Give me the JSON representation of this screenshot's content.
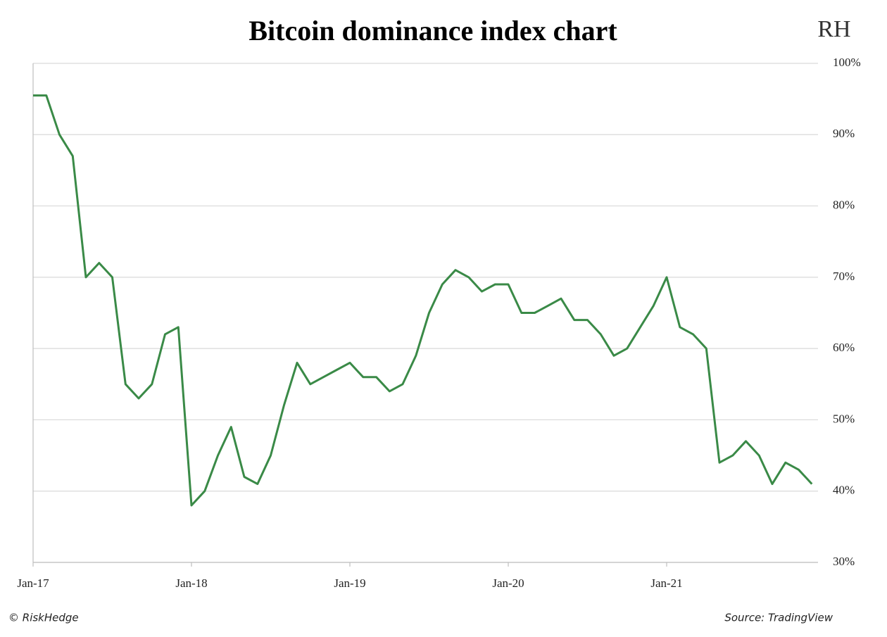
{
  "chart_data": {
    "type": "line",
    "title": "Bitcoin dominance index chart",
    "logo": "RH",
    "credit": "© RiskHedge",
    "source": "Source: TradingView",
    "x": [
      "Jan-17",
      "Feb-17",
      "Mar-17",
      "Apr-17",
      "May-17",
      "Jun-17",
      "Jul-17",
      "Aug-17",
      "Sep-17",
      "Oct-17",
      "Nov-17",
      "Dec-17",
      "Jan-18",
      "Feb-18",
      "Mar-18",
      "Apr-18",
      "May-18",
      "Jun-18",
      "Jul-18",
      "Aug-18",
      "Sep-18",
      "Oct-18",
      "Nov-18",
      "Dec-18",
      "Jan-19",
      "Feb-19",
      "Mar-19",
      "Apr-19",
      "May-19",
      "Jun-19",
      "Jul-19",
      "Aug-19",
      "Sep-19",
      "Oct-19",
      "Nov-19",
      "Dec-19",
      "Jan-20",
      "Feb-20",
      "Mar-20",
      "Apr-20",
      "May-20",
      "Jun-20",
      "Jul-20",
      "Aug-20",
      "Sep-20",
      "Oct-20",
      "Nov-20",
      "Dec-20",
      "Jan-21",
      "Feb-21",
      "Mar-21",
      "Apr-21",
      "May-21",
      "Jun-21",
      "Jul-21",
      "Aug-21",
      "Sep-21",
      "Oct-21",
      "Nov-21",
      "Dec-21"
    ],
    "values": [
      95.5,
      95.5,
      90,
      87,
      70,
      72,
      70,
      55,
      53,
      55,
      62,
      63,
      38,
      40,
      45,
      49,
      42,
      41,
      45,
      52,
      58,
      55,
      56,
      57,
      58,
      56,
      56,
      54,
      55,
      59,
      65,
      69,
      71,
      70,
      68,
      69,
      69,
      65,
      65,
      66,
      67,
      64,
      64,
      62,
      59,
      60,
      63,
      66,
      70,
      63,
      62,
      60,
      44,
      45,
      47,
      45,
      41,
      44,
      43,
      41
    ],
    "color": "#3a8a47",
    "xticks": [
      "Jan-17",
      "Jan-18",
      "Jan-19",
      "Jan-20",
      "Jan-21"
    ],
    "ylim": [
      30,
      100
    ],
    "yticks": [
      {
        "value": 30,
        "label": "30%"
      },
      {
        "value": 40,
        "label": "40%"
      },
      {
        "value": 50,
        "label": "50%"
      },
      {
        "value": 60,
        "label": "60%"
      },
      {
        "value": 70,
        "label": "70%"
      },
      {
        "value": 80,
        "label": "80%"
      },
      {
        "value": 90,
        "label": "90%"
      },
      {
        "value": 100,
        "label": "100%"
      }
    ],
    "grid": true
  }
}
